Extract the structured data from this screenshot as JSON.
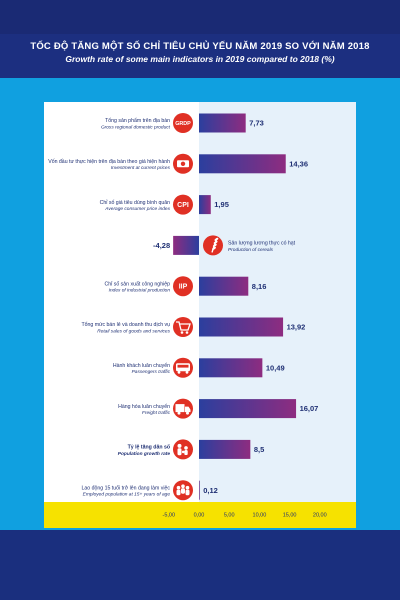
{
  "header": {
    "title_vi": "TỐC ĐỘ TĂNG MỘT SỐ CHỈ TIÊU CHỦ YẾU NĂM 2019 SO VỚI NĂM 2018",
    "title_en": "Growth rate of some main indicators in 2019 compared to 2018 (%)"
  },
  "colors": {
    "background_dark": "#1c2f80",
    "band_cyan": "#10a0e0",
    "panel_left": "#ffffff",
    "panel_right": "#e6f1fa",
    "axis_bar": "#f6e200",
    "bar_gradient_start": "#2b3f9e",
    "bar_gradient_end": "#8e2c80",
    "badge_red": "#e03024"
  },
  "chart_data": {
    "type": "bar",
    "orientation": "horizontal",
    "title": "TỐC ĐỘ TĂNG MỘT SỐ CHỈ TIÊU CHỦ YẾU NĂM 2019 SO VỚI NĂM 2018",
    "subtitle": "Growth rate of some main indicators in 2019 compared to 2018 (%)",
    "xlim": [
      -5,
      20
    ],
    "grid": false,
    "tick_values": [
      -5,
      0,
      5,
      10,
      15,
      20
    ],
    "tick_labels": [
      "-5,00",
      "0,00",
      "5,00",
      "10,00",
      "15,00",
      "20,00"
    ],
    "categories": [
      {
        "label_vi": "Tổng sản phẩm trên địa bàn",
        "label_en": "Gross regional domestic product",
        "icon": "grdp-badge",
        "badge": "GRDP",
        "value": 7.73,
        "value_label": "7,73"
      },
      {
        "label_vi": "Vốn đầu tư thực hiện trên địa bàn theo giá hiện hành",
        "label_en": "Investment at current prices",
        "icon": "money-icon",
        "value": 14.36,
        "value_label": "14,36"
      },
      {
        "label_vi": "Chỉ số giá tiêu dùng bình quân",
        "label_en": "Average consumer price index",
        "icon": "cpi-badge",
        "badge": "CPI",
        "value": 1.95,
        "value_label": "1,95"
      },
      {
        "label_vi": "Sản lượng lương thực có hạt",
        "label_en": "Production of cereals",
        "icon": "rice-icon",
        "value": -4.28,
        "value_label": "-4,28"
      },
      {
        "label_vi": "Chỉ số sản xuất công nghiệp",
        "label_en": "Index of industrial production",
        "icon": "iip-badge",
        "badge": "IIP",
        "value": 8.16,
        "value_label": "8,16"
      },
      {
        "label_vi": "Tổng mức bán lẻ và doanh thu dịch vụ",
        "label_en": "Retail sales of goods and services",
        "icon": "cart-icon",
        "value": 13.92,
        "value_label": "13,92"
      },
      {
        "label_vi": "Hành khách luân chuyển",
        "label_en": "Passengers traffic",
        "icon": "bus-icon",
        "value": 10.49,
        "value_label": "10,49"
      },
      {
        "label_vi": "Hàng hóa luân chuyển",
        "label_en": "Freight traffic",
        "icon": "truck-icon",
        "value": 16.07,
        "value_label": "16,07"
      },
      {
        "label_vi": "Tỷ lệ tăng dân số",
        "label_en": "Population growth rate",
        "icon": "population-icon",
        "value": 8.5,
        "value_label": "8,5",
        "bold": true
      },
      {
        "label_vi": "Lao động 15 tuổi trở lên đang làm việc",
        "label_en": "Employed population at 15+ years of age",
        "icon": "workers-icon",
        "value": 0.12,
        "value_label": "0,12"
      }
    ]
  }
}
